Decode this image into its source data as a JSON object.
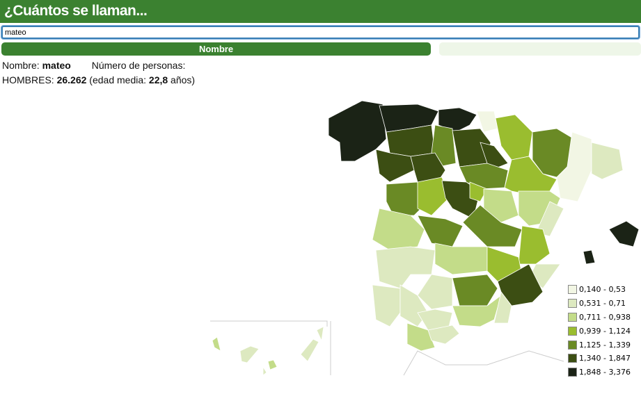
{
  "header": {
    "title": "¿Cuántos se llaman..."
  },
  "search": {
    "value": "mateo"
  },
  "tabs": {
    "nombre": "Nombre"
  },
  "info": {
    "nombre_label": "Nombre:",
    "nombre_value": "mateo",
    "personas_label": "Número de personas:",
    "hombres_label": "HOMBRES:",
    "hombres_value": "26.262",
    "edad_open": "(edad media:",
    "edad_value": "22,8",
    "edad_close": "años)"
  },
  "legend": {
    "items": [
      {
        "label": "0,140 - 0,53",
        "color": "#f2f6e4"
      },
      {
        "label": "0,531 - 0,71",
        "color": "#dde9c0"
      },
      {
        "label": "0,711 - 0,938",
        "color": "#c3dc89"
      },
      {
        "label": "0,939 - 1,124",
        "color": "#9abd2f"
      },
      {
        "label": "1,125 - 1,339",
        "color": "#6a8a25"
      },
      {
        "label": "1,340 - 1,847",
        "color": "#3c4e13"
      },
      {
        "label": "1,848 - 3,376",
        "color": "#1b2316"
      }
    ]
  }
}
